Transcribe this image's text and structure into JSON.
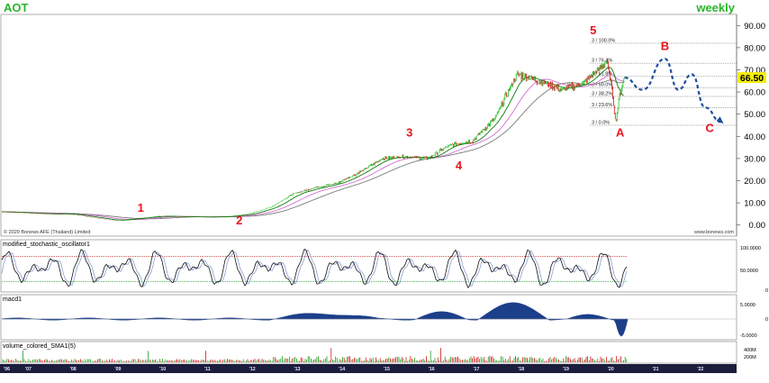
{
  "header": {
    "symbol": "AOT",
    "interval": "weekly",
    "copyright": "© 2020 Bonews AFE (Thailand) Limited",
    "site": "www.bonews.com"
  },
  "colors": {
    "header_text": "#2bb52b",
    "wave_label": "#e8141b",
    "forecast": "#1f4e9c",
    "price_up": "#1fbf1f",
    "price_down": "#d01818",
    "ma_fast": "#0a7a0a",
    "ma_mid": "#d26ed2",
    "ma_slow": "#7a7a7a",
    "macd_fill": "#1c3f8a",
    "last_price_bg": "#f6ee0a"
  },
  "chart_data": {
    "type": "line",
    "title": "AOT",
    "subtitle": "weekly",
    "xlabel": "",
    "ylabel": "",
    "ylim": [
      -5,
      95
    ],
    "yticks": [
      0,
      10,
      20,
      30,
      40,
      50,
      60,
      70,
      80,
      90
    ],
    "ytick_labels": [
      "0.00",
      "10.00",
      "20.00",
      "30.00",
      "40.00",
      "50.00",
      "60.00",
      "70.00",
      "80.00",
      "90.00"
    ],
    "last_price": 66.5,
    "last_price_label": "66.50",
    "grid": false,
    "x": [
      2006.5,
      2007,
      2007.5,
      2008,
      2008.5,
      2009,
      2009.5,
      2010,
      2010.5,
      2011,
      2011.5,
      2012,
      2012.5,
      2013,
      2013.5,
      2014,
      2014.5,
      2015,
      2015.5,
      2016,
      2016.5,
      2017,
      2017.5,
      2018,
      2018.5,
      2019,
      2019.5,
      2020,
      2020.1,
      2020.2,
      2020.3,
      2020.4
    ],
    "series": [
      {
        "values": [
          6,
          5.5,
          5,
          5,
          3.5,
          2,
          3,
          4,
          3.8,
          3.6,
          3.8,
          5,
          8,
          14,
          17,
          19,
          24,
          30,
          31,
          30,
          36,
          38,
          48,
          68,
          65,
          61,
          64,
          74,
          64,
          46,
          60,
          66.5
        ]
      }
    ],
    "wave_labels": [
      {
        "label": "1",
        "x": 2009.6,
        "y": 6
      },
      {
        "label": "2",
        "x": 2011.8,
        "y": 0.2
      },
      {
        "label": "3",
        "x": 2015.6,
        "y": 40
      },
      {
        "label": "4",
        "x": 2016.7,
        "y": 25
      },
      {
        "label": "5",
        "x": 2019.7,
        "y": 86
      },
      {
        "label": "A",
        "x": 2020.3,
        "y": 40
      },
      {
        "label": "B",
        "x": 2021.3,
        "y": 79
      },
      {
        "label": "C",
        "x": 2022.3,
        "y": 42
      }
    ],
    "forecast": {
      "x": [
        2020.4,
        2020.8,
        2021.3,
        2021.6,
        2021.9,
        2022.2,
        2022.55
      ],
      "y": [
        66.5,
        61,
        75,
        61,
        68,
        53,
        46.5
      ]
    },
    "fib_levels": [
      {
        "label": "3 / 100.0%",
        "y": 82
      },
      {
        "label": "3 / 76.4%",
        "y": 73
      },
      {
        "label": "3 / 61.8%",
        "y": 67
      },
      {
        "label": "3 / 50.0%",
        "y": 62
      },
      {
        "label": "3 / 38.2%",
        "y": 58
      },
      {
        "label": "3 / 23.6%",
        "y": 53
      },
      {
        "label": "3 / 0.0%",
        "y": 45
      }
    ],
    "xtick_labels": [
      "'06",
      "'07",
      "'08",
      "'09",
      "'10",
      "'11",
      "'12",
      "'13",
      "'14",
      "'15",
      "'16",
      "'17",
      "'18",
      "'19",
      "'20",
      "'21",
      "'22"
    ]
  },
  "indicators": {
    "stochastic": {
      "title": "modified_stochastic_oscillator1",
      "ytick_labels": [
        "100.0000",
        "50.0000",
        "0"
      ],
      "upper": 80,
      "lower": 20
    },
    "macd": {
      "title": "macd1",
      "ytick_labels": [
        "5.0000",
        "0",
        "-5.0000"
      ]
    },
    "volume": {
      "title": "volume_colored_SMA1(5)",
      "ytick_labels": [
        "400M",
        "200M"
      ]
    }
  }
}
